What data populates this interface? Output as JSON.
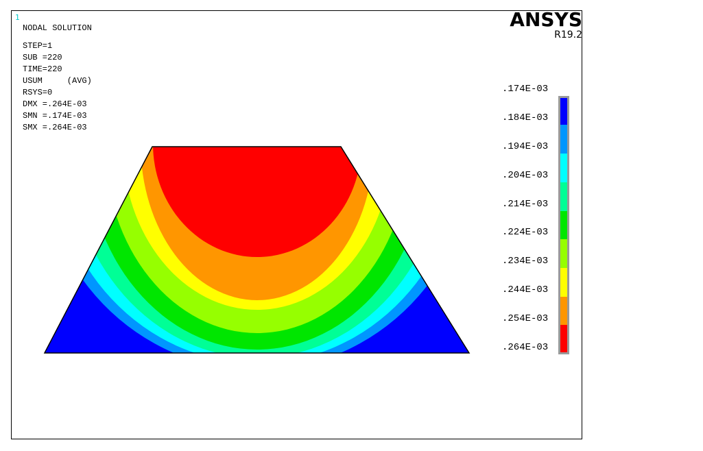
{
  "window_number": "1",
  "title": "NODAL SOLUTION",
  "info_lines": [
    "STEP=1",
    "SUB =220",
    "TIME=220",
    "USUM     (AVG)",
    "RSYS=0",
    "DMX =.264E-03",
    "SMN =.174E-03",
    "SMX =.264E-03"
  ],
  "brand": {
    "name": "ANSYS",
    "release": "R19.2"
  },
  "legend": {
    "labels": [
      ".174E-03",
      ".184E-03",
      ".194E-03",
      ".204E-03",
      ".214E-03",
      ".224E-03",
      ".234E-03",
      ".244E-03",
      ".254E-03",
      ".264E-03"
    ],
    "colors": [
      "#0000ff",
      "#0096ff",
      "#00ffff",
      "#00ff96",
      "#00e600",
      "#96ff00",
      "#ffff00",
      "#ff9600",
      "#ff0000"
    ]
  }
}
